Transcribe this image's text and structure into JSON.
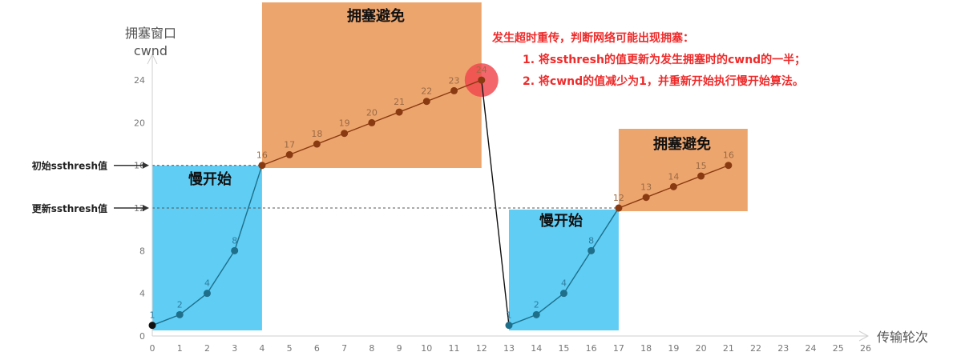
{
  "chart_data": {
    "type": "line",
    "ylabel": [
      "拥塞窗口",
      "cwnd"
    ],
    "xlabel": "传输轮次",
    "xlim": [
      0,
      26
    ],
    "ylim": [
      0,
      26
    ],
    "xticks": [
      0,
      1,
      2,
      3,
      4,
      5,
      6,
      7,
      8,
      9,
      10,
      11,
      12,
      13,
      14,
      15,
      16,
      17,
      18,
      19,
      20,
      21,
      22,
      23,
      24,
      25,
      26
    ],
    "yticks": [
      0,
      4,
      8,
      12,
      16,
      20,
      24
    ],
    "series": [
      {
        "x": [
          0,
          1,
          2,
          3,
          4,
          5,
          6,
          7,
          8,
          9,
          10,
          11,
          12,
          13,
          14,
          15,
          16,
          17,
          18,
          19,
          20,
          21
        ],
        "values": [
          1,
          2,
          4,
          8,
          16,
          17,
          18,
          19,
          20,
          21,
          22,
          23,
          24,
          1,
          2,
          4,
          8,
          12,
          13,
          14,
          15,
          16
        ]
      }
    ],
    "segments": [
      {
        "label": "慢开始",
        "x_start": 0,
        "x_end": 4,
        "color": "#5fcdf4"
      },
      {
        "label": "拥塞避免",
        "x_start": 4,
        "x_end": 12,
        "color": "#eda56e"
      },
      {
        "label": "慢开始",
        "x_start": 13,
        "x_end": 17,
        "color": "#5fcdf4"
      },
      {
        "label": "拥塞避免",
        "x_start": 17,
        "x_end": 21.7,
        "color": "#eda56e"
      }
    ],
    "reference_lines": [
      {
        "label": "初始ssthresh值",
        "y": 16
      },
      {
        "label": "更新ssthresh值",
        "y": 12
      }
    ],
    "annotation": {
      "lines": [
        "发生超时重传，判断网络可能出现拥塞：",
        "1. 将ssthresh的值更新为发生拥塞时的cwnd的一半；",
        "2. 将cwnd的值减少为1，并重新开始执行慢开始算法。"
      ],
      "color": "#ee2b2b",
      "highlight_point": {
        "x": 12,
        "y": 24
      }
    },
    "grid": false
  }
}
